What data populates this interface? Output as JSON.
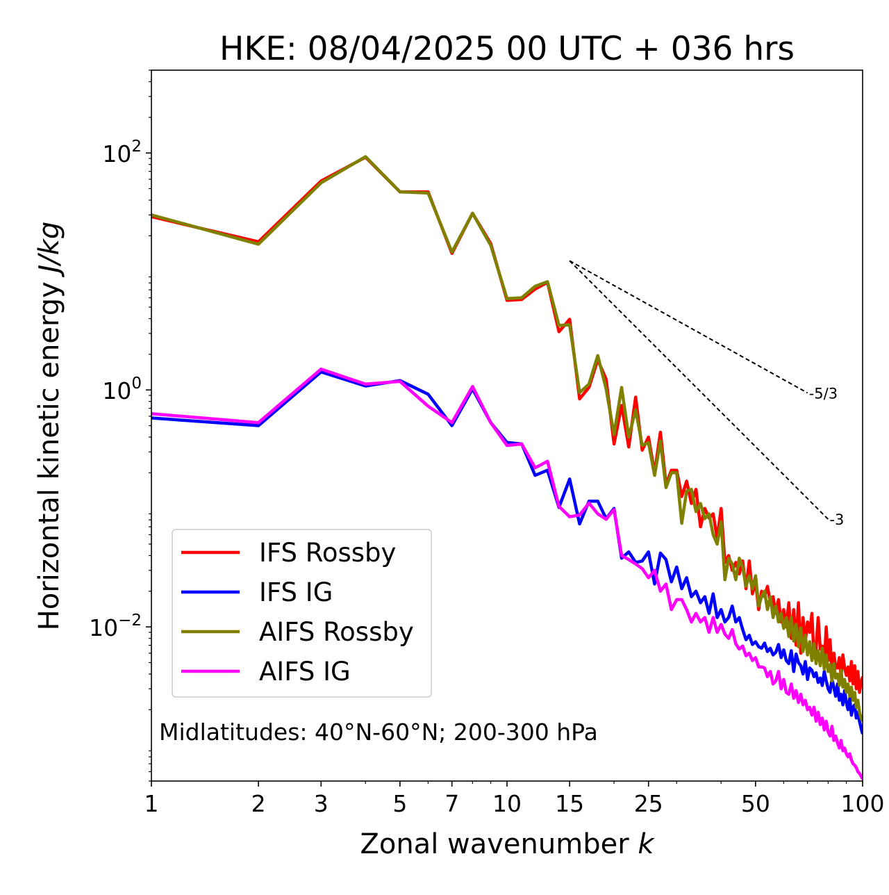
{
  "chart_data": {
    "type": "line",
    "title": "HKE: 08/04/2025 00 UTC + 036 hrs",
    "xlabel": "Zonal wavenumber ",
    "xlabel_var": "k",
    "ylabel": "Horizontal kinetic energy ",
    "ylabel_unit": "J/kg",
    "x_scale": "log",
    "y_scale": "log",
    "xlim": [
      1,
      100
    ],
    "ylim": [
      0.0005,
      500
    ],
    "x_ticks": [
      {
        "value": 1,
        "label": "1"
      },
      {
        "value": 2,
        "label": "2"
      },
      {
        "value": 3,
        "label": "3"
      },
      {
        "value": 5,
        "label": "5"
      },
      {
        "value": 7,
        "label": "7"
      },
      {
        "value": 10,
        "label": "10"
      },
      {
        "value": 15,
        "label": "15"
      },
      {
        "value": 25,
        "label": "25"
      },
      {
        "value": 50,
        "label": "50"
      },
      {
        "value": 100,
        "label": "100"
      }
    ],
    "y_ticks": [
      {
        "value": 100,
        "base": "10",
        "exp": "2"
      },
      {
        "value": 1,
        "base": "10",
        "exp": "0"
      },
      {
        "value": 0.01,
        "base": "10",
        "exp": "−2"
      }
    ],
    "annotation": "Midlatitudes: 40°N-60°N; 200-300 hPa",
    "legend_position": "lower-left",
    "reference_lines": [
      {
        "label": "-5/3",
        "slope": -1.6667,
        "x": [
          15,
          70
        ],
        "y0": 12.3
      },
      {
        "label": "-3",
        "slope": -3,
        "x": [
          15,
          80
        ],
        "y0": 12.3
      }
    ],
    "grid": false,
    "series": [
      {
        "name": "IFS Rossby",
        "color": "#ff0000",
        "x": [
          1,
          2,
          3,
          4,
          5,
          6,
          7,
          8,
          9,
          10,
          11,
          12,
          13,
          14,
          15,
          16,
          17,
          18,
          19,
          20,
          21,
          22,
          23,
          24,
          25,
          26,
          27,
          28,
          29,
          30,
          31,
          32,
          33,
          34,
          35,
          36,
          37,
          38,
          39,
          40,
          41,
          42,
          43,
          44,
          45,
          46,
          47,
          48,
          49,
          50,
          51,
          52,
          53,
          54,
          55,
          56,
          57,
          58,
          59,
          60,
          61,
          62,
          63,
          64,
          65,
          66,
          67,
          68,
          69,
          70,
          71,
          72,
          73,
          74,
          75,
          76,
          77,
          78,
          79,
          80,
          81,
          82,
          83,
          84,
          85,
          86,
          87,
          88,
          89,
          90,
          91,
          92,
          93,
          94,
          95,
          96,
          97,
          98,
          99,
          100
        ],
        "y": [
          29,
          17.8,
          58,
          92,
          47,
          47,
          14.2,
          31,
          17.2,
          5.7,
          5.8,
          7.1,
          8.1,
          3.1,
          3.95,
          0.84,
          1.05,
          1.8,
          1.23,
          0.35,
          0.74,
          0.33,
          0.87,
          0.31,
          0.4,
          0.2,
          0.44,
          0.16,
          0.21,
          0.21,
          0.126,
          0.17,
          0.11,
          0.145,
          0.07,
          0.1,
          0.083,
          0.09,
          0.056,
          0.1,
          0.035,
          0.04,
          0.03,
          0.035,
          0.028,
          0.036,
          0.021,
          0.036,
          0.019,
          0.024,
          0.014,
          0.02,
          0.018,
          0.022,
          0.016,
          0.018,
          0.013,
          0.017,
          0.011,
          0.014,
          0.01,
          0.016,
          0.008,
          0.014,
          0.007,
          0.016,
          0.006,
          0.012,
          0.0075,
          0.011,
          0.009,
          0.013,
          0.0055,
          0.0066,
          0.012,
          0.0065,
          0.0069,
          0.0048,
          0.01,
          0.0052,
          0.0078,
          0.0042,
          0.006,
          0.0045,
          0.0045,
          0.0055,
          0.0038,
          0.0058,
          0.0045,
          0.0039,
          0.0046,
          0.0035,
          0.0051,
          0.0033,
          0.0047,
          0.003,
          0.0042,
          0.0028,
          0.0034,
          0.0038
        ]
      },
      {
        "name": "IFS IG",
        "color": "#0000ff",
        "x": [
          1,
          2,
          3,
          4,
          5,
          6,
          7,
          8,
          9,
          10,
          11,
          12,
          13,
          14,
          15,
          16,
          17,
          18,
          19,
          20,
          21,
          22,
          23,
          24,
          25,
          26,
          27,
          28,
          29,
          30,
          31,
          32,
          33,
          34,
          35,
          36,
          37,
          38,
          39,
          40,
          41,
          42,
          43,
          44,
          45,
          46,
          47,
          48,
          49,
          50,
          51,
          52,
          53,
          54,
          55,
          56,
          57,
          58,
          59,
          60,
          61,
          62,
          63,
          64,
          65,
          66,
          67,
          68,
          69,
          70,
          71,
          72,
          73,
          74,
          75,
          76,
          77,
          78,
          79,
          80,
          81,
          82,
          83,
          84,
          85,
          86,
          87,
          88,
          89,
          90,
          91,
          92,
          93,
          94,
          95,
          96,
          97,
          98,
          99,
          100
        ],
        "y": [
          0.58,
          0.5,
          1.42,
          1.08,
          1.2,
          0.92,
          0.5,
          1.02,
          0.53,
          0.36,
          0.35,
          0.19,
          0.21,
          0.102,
          0.177,
          0.074,
          0.115,
          0.115,
          0.082,
          0.1,
          0.038,
          0.043,
          0.035,
          0.036,
          0.043,
          0.023,
          0.042,
          0.037,
          0.024,
          0.032,
          0.021,
          0.026,
          0.018,
          0.02,
          0.016,
          0.018,
          0.013,
          0.019,
          0.012,
          0.014,
          0.011,
          0.012,
          0.015,
          0.011,
          0.012,
          0.0095,
          0.0078,
          0.0085,
          0.0071,
          0.0075,
          0.0068,
          0.0066,
          0.0073,
          0.0062,
          0.0066,
          0.0058,
          0.0061,
          0.0071,
          0.0055,
          0.0064,
          0.0052,
          0.0049,
          0.0063,
          0.0042,
          0.0059,
          0.005,
          0.0047,
          0.004,
          0.0051,
          0.0036,
          0.0045,
          0.0043,
          0.0038,
          0.0041,
          0.0034,
          0.0037,
          0.0032,
          0.0042,
          0.0035,
          0.003,
          0.0028,
          0.0036,
          0.0031,
          0.0026,
          0.0033,
          0.0024,
          0.0027,
          0.0022,
          0.0029,
          0.0023,
          0.002,
          0.0025,
          0.0018,
          0.0021,
          0.0022,
          0.0017,
          0.0019,
          0.0016,
          0.0014,
          0.00125
        ]
      },
      {
        "name": "AIFS Rossby",
        "color": "#808000",
        "x": [
          1,
          2,
          3,
          4,
          5,
          6,
          7,
          8,
          9,
          10,
          11,
          12,
          13,
          14,
          15,
          16,
          17,
          18,
          19,
          20,
          21,
          22,
          23,
          24,
          25,
          26,
          27,
          28,
          29,
          30,
          31,
          32,
          33,
          34,
          35,
          36,
          37,
          38,
          39,
          40,
          41,
          42,
          43,
          44,
          45,
          46,
          47,
          48,
          49,
          50,
          51,
          52,
          53,
          54,
          55,
          56,
          57,
          58,
          59,
          60,
          61,
          62,
          63,
          64,
          65,
          66,
          67,
          68,
          69,
          70,
          71,
          72,
          73,
          74,
          75,
          76,
          77,
          78,
          79,
          80,
          81,
          82,
          83,
          84,
          85,
          86,
          87,
          88,
          89,
          90,
          91,
          92,
          93,
          94,
          95,
          96,
          97,
          98,
          99,
          100
        ],
        "y": [
          30,
          17,
          56,
          93,
          47,
          46,
          14.6,
          31,
          16.6,
          5.9,
          6.0,
          7.5,
          8.2,
          3.5,
          3.55,
          0.95,
          1.12,
          1.95,
          1.02,
          0.42,
          1.05,
          0.4,
          0.68,
          0.34,
          0.36,
          0.19,
          0.37,
          0.15,
          0.2,
          0.2,
          0.075,
          0.14,
          0.145,
          0.094,
          0.11,
          0.082,
          0.09,
          0.06,
          0.05,
          0.077,
          0.025,
          0.038,
          0.034,
          0.025,
          0.038,
          0.032,
          0.022,
          0.027,
          0.021,
          0.027,
          0.015,
          0.018,
          0.02,
          0.014,
          0.018,
          0.012,
          0.015,
          0.011,
          0.013,
          0.0097,
          0.012,
          0.0083,
          0.012,
          0.0076,
          0.0105,
          0.0068,
          0.0098,
          0.0062,
          0.0085,
          0.0058,
          0.0075,
          0.0052,
          0.0072,
          0.0049,
          0.0063,
          0.0047,
          0.0066,
          0.0044,
          0.0058,
          0.0042,
          0.0048,
          0.0035,
          0.0049,
          0.0037,
          0.004,
          0.0032,
          0.0043,
          0.0031,
          0.0036,
          0.0028,
          0.0033,
          0.0026,
          0.0031,
          0.0024,
          0.0028,
          0.0021,
          0.0024,
          0.0019,
          0.0017,
          0.0016
        ]
      },
      {
        "name": "AIFS IG",
        "color": "#ff00ff",
        "x": [
          1,
          2,
          3,
          4,
          5,
          6,
          7,
          8,
          9,
          10,
          11,
          12,
          13,
          14,
          15,
          16,
          17,
          18,
          19,
          20,
          21,
          22,
          23,
          24,
          25,
          26,
          27,
          28,
          29,
          30,
          31,
          32,
          33,
          34,
          35,
          36,
          37,
          38,
          39,
          40,
          41,
          42,
          43,
          44,
          45,
          46,
          47,
          48,
          49,
          50,
          51,
          52,
          53,
          54,
          55,
          56,
          57,
          58,
          59,
          60,
          61,
          62,
          63,
          64,
          65,
          66,
          67,
          68,
          69,
          70,
          71,
          72,
          73,
          74,
          75,
          76,
          77,
          78,
          79,
          80,
          81,
          82,
          83,
          84,
          85,
          86,
          87,
          88,
          89,
          90,
          91,
          92,
          93,
          94,
          95,
          96,
          97,
          98,
          99,
          100
        ],
        "y": [
          0.63,
          0.53,
          1.5,
          1.12,
          1.18,
          0.73,
          0.53,
          1.07,
          0.53,
          0.34,
          0.35,
          0.22,
          0.25,
          0.104,
          0.085,
          0.088,
          0.111,
          0.09,
          0.081,
          0.098,
          0.04,
          0.037,
          0.034,
          0.031,
          0.026,
          0.03,
          0.02,
          0.023,
          0.014,
          0.017,
          0.017,
          0.014,
          0.011,
          0.013,
          0.011,
          0.012,
          0.009,
          0.012,
          0.009,
          0.0105,
          0.0087,
          0.008,
          0.0095,
          0.0072,
          0.0065,
          0.0069,
          0.0057,
          0.006,
          0.0052,
          0.0055,
          0.0046,
          0.0046,
          0.0045,
          0.0038,
          0.0042,
          0.0033,
          0.0035,
          0.0042,
          0.003,
          0.0036,
          0.0028,
          0.0027,
          0.0033,
          0.0025,
          0.0029,
          0.0023,
          0.0027,
          0.0022,
          0.0024,
          0.002,
          0.0021,
          0.0018,
          0.0021,
          0.0016,
          0.0019,
          0.0015,
          0.0017,
          0.00135,
          0.0016,
          0.0013,
          0.0012,
          0.00145,
          0.0011,
          0.0012,
          0.00105,
          0.00095,
          0.0011,
          0.0009,
          0.00095,
          0.00085,
          0.0008,
          0.00085,
          0.00075,
          0.0007,
          0.00068,
          0.00065,
          0.0006,
          0.00058,
          0.00055,
          0.00052
        ]
      }
    ]
  }
}
